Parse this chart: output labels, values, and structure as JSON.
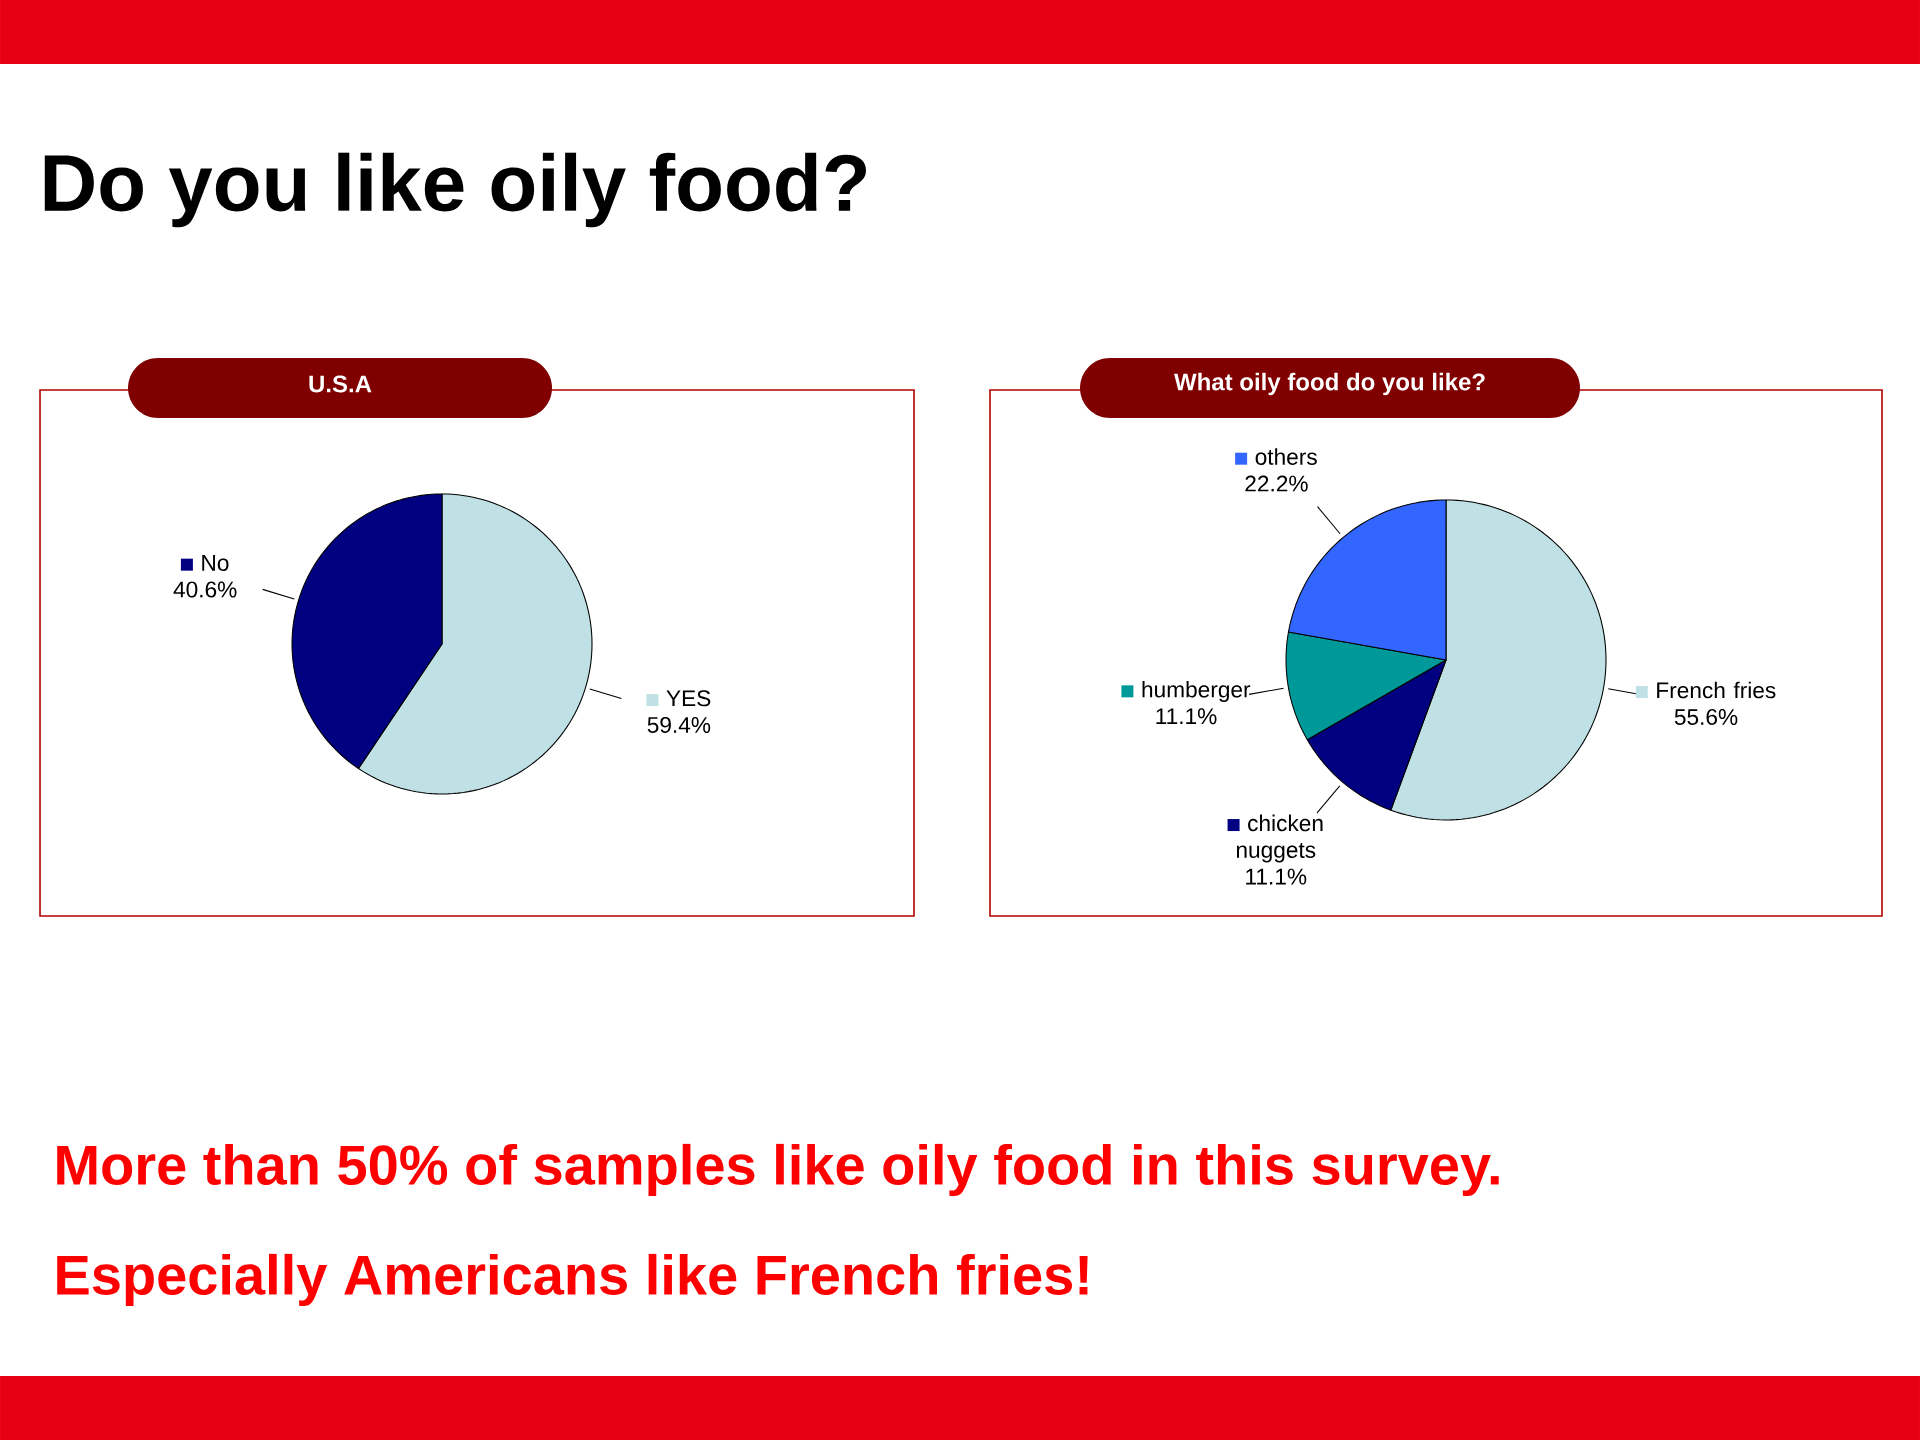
{
  "chart_data": [
    {
      "type": "pie",
      "title": "U.S.A",
      "categories": [
        "YES",
        "No"
      ],
      "values": [
        59.4,
        40.6
      ],
      "value_labels": [
        "59.4%",
        "40.6%"
      ],
      "colors": [
        "#bfe0e4",
        "#000080"
      ],
      "legend": "right",
      "annotations": [
        "Do you like oily food?"
      ]
    },
    {
      "type": "pie",
      "title": "What oily food do you like?",
      "categories": [
        "French fries",
        "chicken nuggets",
        "humberger",
        "others"
      ],
      "values": [
        55.6,
        11.1,
        11.1,
        22.2
      ],
      "value_labels": [
        "55.6%",
        "11.1%",
        "11.1%",
        "22.2%"
      ],
      "colors": [
        "#bfe0e4",
        "#000080",
        "#009999",
        "#3366ff"
      ],
      "legend": "right",
      "annotations": [
        "More than 50% of samples like oily food in this survey.",
        "Especially Americans like French fries!"
      ]
    }
  ]
}
